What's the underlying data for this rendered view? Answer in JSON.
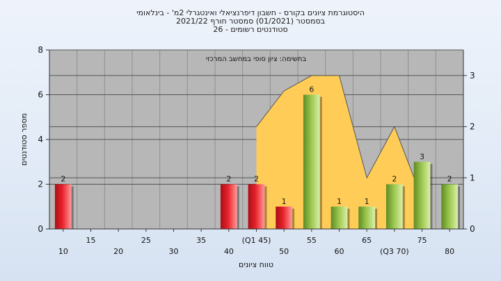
{
  "chart_data": {
    "type": "bar",
    "title_lines": [
      "היסטוגרמת ציונים בקורס - חשבון דיפרנציאלי ואינטגרלי 2מ' - בינלאומי",
      "בסמסטר  (01/2021)  סמסטר חורף 2021/22",
      "סטודנטים רשומים - 26"
    ],
    "annotation": "בחשימה: ציון סופי במחשב המרכזי",
    "xlabel": "טווח ציונים",
    "ylabel": "מספר סטודנטים",
    "ylim": [
      0,
      8
    ],
    "y_ticks": [
      "0",
      "2",
      "4",
      "6",
      "8"
    ],
    "y2lim": [
      0,
      3.5
    ],
    "y2_ticks": [
      "0",
      "1",
      "2",
      "3"
    ],
    "categories": [
      "10",
      "15",
      "20",
      "25",
      "30",
      "35",
      "40",
      "(Q1 45)",
      "50",
      "55",
      "60",
      "65",
      "(Q3 70)",
      "75",
      "80"
    ],
    "values": [
      2,
      0,
      0,
      0,
      0,
      0,
      2,
      2,
      1,
      6,
      1,
      1,
      2,
      3,
      2
    ],
    "bar_colors": [
      "red",
      "none",
      "none",
      "none",
      "none",
      "none",
      "red",
      "red",
      "red",
      "green",
      "green",
      "green",
      "green",
      "green",
      "green"
    ],
    "data_labels": [
      "2",
      "",
      "",
      "",
      "",
      "",
      "2",
      "2",
      "1",
      "6",
      "1",
      "1",
      "2",
      "3",
      "2"
    ],
    "area_series": {
      "x": [
        "(Q1 45)",
        "50",
        "55",
        "60",
        "65",
        "(Q3 70)",
        "75"
      ],
      "values": [
        2.0,
        2.7,
        3.0,
        3.0,
        1.0,
        2.0,
        0.6
      ]
    },
    "colors": {
      "red": "#e8222b",
      "green": "#98c54c",
      "area": "#ffcc57",
      "plot_bg": "#b7b7b7"
    }
  }
}
